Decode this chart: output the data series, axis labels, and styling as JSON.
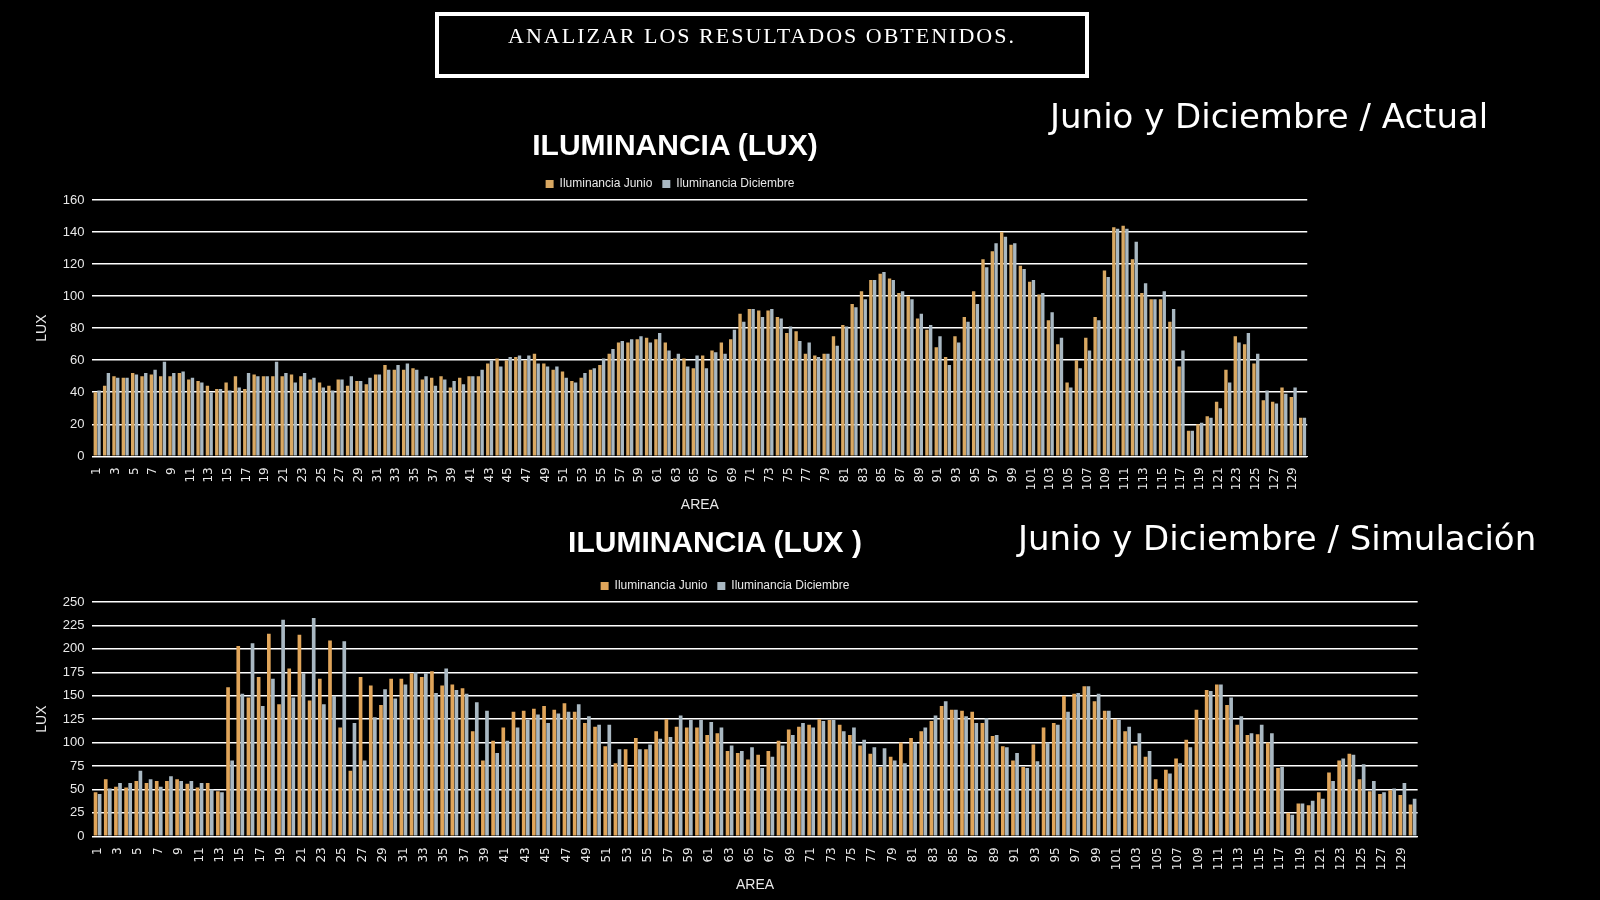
{
  "chart_data": [
    {
      "type": "bar",
      "title": "ILUMINANCIA (LUX)",
      "subtitle": "Junio y Diciembre / Actual",
      "xlabel": "AREA",
      "ylabel": "LUX",
      "annotations": [
        "ANALIZAR LOS RESULTADOS OBTENIDOS."
      ],
      "categories": [
        "1",
        null,
        "3",
        null,
        "5",
        null,
        "7",
        null,
        "9",
        null,
        "11",
        null,
        "13",
        null,
        "15",
        null,
        "17",
        null,
        "19",
        null,
        "21",
        null,
        "23",
        null,
        "25",
        null,
        "27",
        null,
        "29",
        null,
        "31",
        null,
        "33",
        null,
        "35",
        null,
        "37",
        null,
        "39",
        null,
        "41",
        null,
        "43",
        null,
        "45",
        null,
        "47",
        null,
        "49",
        null,
        "51",
        null,
        "53",
        null,
        "55",
        null,
        "57",
        null,
        "59",
        null,
        "61",
        null,
        "63",
        null,
        "65",
        null,
        "67",
        null,
        "69",
        null,
        "71",
        null,
        "73",
        null,
        "75",
        null,
        "77",
        null,
        "79",
        null,
        "81",
        null,
        "83",
        null,
        "85",
        null,
        "87",
        null,
        "89",
        null,
        "91",
        null,
        "93",
        null,
        "95",
        null,
        "97",
        null,
        "99",
        null,
        "101",
        null,
        "103",
        null,
        "105",
        null,
        "107",
        null,
        "109",
        null,
        "111",
        null,
        "113",
        null,
        "115",
        null,
        "117",
        null,
        "119",
        null,
        "121",
        null,
        "123",
        null,
        "125",
        null,
        "127",
        null,
        "129",
        null
      ],
      "series": [
        {
          "name": "Iluminancia Junio",
          "color": "#d9a862",
          "values": [
            40,
            44,
            50,
            49,
            52,
            50,
            51,
            50,
            50,
            52,
            48,
            47,
            44,
            42,
            46,
            50,
            42,
            51,
            50,
            50,
            50,
            51,
            50,
            48,
            46,
            44,
            48,
            44,
            47,
            45,
            51,
            57,
            54,
            54,
            55,
            48,
            49,
            50,
            43,
            49,
            50,
            50,
            58,
            61,
            60,
            62,
            60,
            64,
            58,
            54,
            53,
            47,
            49,
            54,
            57,
            64,
            71,
            71,
            73,
            74,
            73,
            71,
            61,
            61,
            55,
            63,
            66,
            71,
            73,
            89,
            92,
            91,
            91,
            87,
            77,
            78,
            64,
            63,
            64,
            75,
            82,
            95,
            103,
            110,
            114,
            111,
            102,
            100,
            86,
            79,
            68,
            62,
            75,
            87,
            103,
            123,
            128,
            140,
            132,
            119,
            109,
            101,
            85,
            70,
            46,
            60,
            74,
            87,
            116,
            143,
            144,
            123,
            102,
            98,
            98,
            84,
            56,
            16,
            20,
            25,
            34,
            54,
            75,
            70,
            58,
            35,
            34,
            43,
            37,
            24
          ]
        },
        {
          "name": "Iluminancia Diciembre",
          "color": "#a9b8c2",
          "values": [
            41,
            52,
            49,
            49,
            51,
            52,
            54,
            59,
            52,
            53,
            49,
            46,
            40,
            42,
            41,
            43,
            52,
            50,
            50,
            59,
            52,
            46,
            52,
            49,
            43,
            41,
            48,
            50,
            47,
            49,
            51,
            54,
            57,
            58,
            54,
            50,
            44,
            48,
            47,
            45,
            50,
            54,
            60,
            56,
            62,
            63,
            63,
            58,
            56,
            56,
            49,
            46,
            52,
            55,
            61,
            67,
            72,
            73,
            75,
            71,
            77,
            66,
            64,
            56,
            63,
            55,
            65,
            64,
            79,
            84,
            92,
            87,
            92,
            86,
            81,
            72,
            71,
            62,
            64,
            69,
            81,
            93,
            98,
            110,
            115,
            110,
            103,
            98,
            89,
            82,
            75,
            57,
            71,
            84,
            95,
            118,
            133,
            137,
            133,
            117,
            110,
            102,
            90,
            74,
            43,
            55,
            66,
            85,
            112,
            142,
            142,
            134,
            108,
            98,
            103,
            92,
            66,
            16,
            21,
            24,
            30,
            46,
            71,
            77,
            64,
            41,
            33,
            39,
            43,
            24
          ]
        }
      ],
      "ylim": [
        0,
        160
      ],
      "yticks": [
        0,
        20,
        40,
        60,
        80,
        100,
        120,
        140,
        160
      ],
      "grid": "y",
      "legend": "top"
    },
    {
      "type": "bar",
      "title": "ILUMINANCIA (LUX )",
      "subtitle": "Junio y Diciembre / Simulación",
      "xlabel": "AREA",
      "ylabel": "LUX",
      "categories": [
        "1",
        null,
        "3",
        null,
        "5",
        null,
        "7",
        null,
        "9",
        null,
        "11",
        null,
        "13",
        null,
        "15",
        null,
        "17",
        null,
        "19",
        null,
        "21",
        null,
        "23",
        null,
        "25",
        null,
        "27",
        null,
        "29",
        null,
        "31",
        null,
        "33",
        null,
        "35",
        null,
        "37",
        null,
        "39",
        null,
        "41",
        null,
        "43",
        null,
        "45",
        null,
        "47",
        null,
        "49",
        null,
        "51",
        null,
        "53",
        null,
        "55",
        null,
        "57",
        null,
        "59",
        null,
        "61",
        null,
        "63",
        null,
        "65",
        null,
        "67",
        null,
        "69",
        null,
        "71",
        null,
        "73",
        null,
        "75",
        null,
        "77",
        null,
        "79",
        null,
        "81",
        null,
        "83",
        null,
        "85",
        null,
        "87",
        null,
        "89",
        null,
        "91",
        null,
        "93",
        null,
        "95",
        null,
        "97",
        null,
        "99",
        null,
        "101",
        null,
        "103",
        null,
        "105",
        null,
        "107",
        null,
        "109",
        null,
        "111",
        null,
        "113",
        null,
        "115",
        null,
        "117",
        null,
        "119",
        null,
        "121",
        null,
        "123",
        null,
        "125",
        null,
        "127",
        null,
        "129",
        null
      ],
      "series": [
        {
          "name": "Iluminancia Junio",
          "color": "#e0a55a",
          "values": [
            47,
            61,
            53,
            52,
            59,
            57,
            59,
            59,
            61,
            56,
            52,
            57,
            48,
            159,
            203,
            148,
            170,
            216,
            141,
            179,
            215,
            145,
            168,
            209,
            116,
            70,
            170,
            161,
            140,
            168,
            168,
            174,
            170,
            176,
            161,
            162,
            158,
            112,
            81,
            102,
            116,
            133,
            134,
            136,
            139,
            135,
            142,
            133,
            121,
            117,
            96,
            78,
            93,
            105,
            93,
            112,
            125,
            117,
            116,
            116,
            108,
            110,
            91,
            89,
            82,
            87,
            91,
            102,
            114,
            117,
            119,
            125,
            124,
            119,
            108,
            97,
            88,
            74,
            85,
            100,
            105,
            112,
            123,
            139,
            135,
            134,
            133,
            121,
            107,
            96,
            81,
            74,
            98,
            116,
            121,
            150,
            152,
            160,
            144,
            134,
            125,
            112,
            97,
            85,
            61,
            71,
            83,
            103,
            135,
            156,
            162,
            140,
            119,
            108,
            109,
            100,
            73,
            25,
            35,
            33,
            47,
            68,
            81,
            88,
            61,
            48,
            45,
            49,
            44,
            34
          ]
        },
        {
          "name": "Iluminancia Diciembre",
          "color": "#a9b8c2",
          "values": [
            45,
            51,
            57,
            57,
            70,
            61,
            53,
            64,
            59,
            59,
            57,
            50,
            47,
            81,
            152,
            206,
            139,
            168,
            231,
            148,
            174,
            233,
            141,
            150,
            208,
            121,
            81,
            127,
            157,
            147,
            162,
            175,
            174,
            153,
            179,
            156,
            152,
            143,
            134,
            89,
            102,
            116,
            124,
            130,
            121,
            131,
            133,
            141,
            128,
            119,
            119,
            93,
            73,
            93,
            98,
            104,
            106,
            129,
            124,
            124,
            122,
            116,
            97,
            91,
            95,
            73,
            85,
            97,
            108,
            121,
            116,
            123,
            124,
            112,
            116,
            103,
            95,
            94,
            81,
            78,
            100,
            116,
            129,
            144,
            135,
            128,
            121,
            126,
            108,
            95,
            89,
            73,
            80,
            100,
            119,
            133,
            153,
            160,
            152,
            134,
            124,
            117,
            110,
            91,
            51,
            67,
            78,
            95,
            124,
            155,
            162,
            148,
            128,
            110,
            119,
            110,
            74,
            23,
            35,
            38,
            40,
            59,
            83,
            87,
            77,
            59,
            47,
            51,
            57,
            40
          ]
        }
      ],
      "ylim": [
        0,
        250
      ],
      "yticks": [
        0,
        25,
        50,
        75,
        100,
        125,
        150,
        175,
        200,
        225,
        250
      ],
      "grid": "y",
      "legend": "top"
    }
  ]
}
